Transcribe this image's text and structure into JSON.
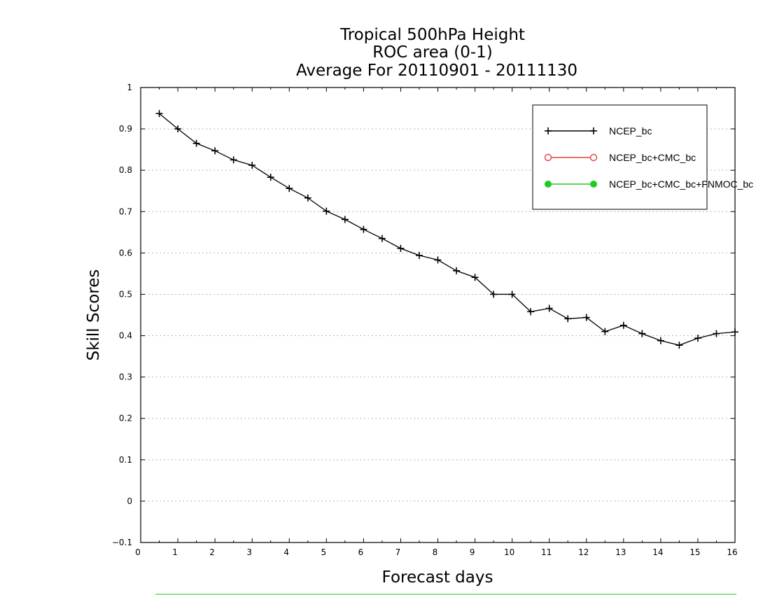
{
  "chart_data": {
    "type": "line",
    "title": [
      "Tropical 500hPa Height",
      "ROC area (0-1)",
      "Average For 20110901 - 20111130"
    ],
    "xlabel": "Forecast days",
    "ylabel": "Skill Scores",
    "xlim": [
      0,
      16
    ],
    "ylim": [
      -0.1,
      1
    ],
    "xticks": [
      "0",
      "1",
      "2",
      "3",
      "4",
      "5",
      "6",
      "7",
      "8",
      "9",
      "10",
      "11",
      "12",
      "13",
      "14",
      "15",
      "16"
    ],
    "yticks": [
      "−0.1",
      "0",
      "0.1",
      "0.2",
      "0.3",
      "0.4",
      "0.5",
      "0.6",
      "0.7",
      "0.8",
      "0.9",
      "1"
    ],
    "grid": "horizontal dotted",
    "legend_position": "top-right",
    "series": [
      {
        "name": "NCEP_bc",
        "color": "#000000",
        "marker": "plus",
        "x": [
          0.5,
          1,
          1.5,
          2,
          2.5,
          3,
          3.5,
          4,
          4.5,
          5,
          5.5,
          6,
          6.5,
          7,
          7.5,
          8,
          8.5,
          9,
          9.5,
          10,
          10.5,
          11,
          11.5,
          12,
          12.5,
          13,
          13.5,
          14,
          14.5,
          15,
          15.5,
          16
        ],
        "y": [
          0.937,
          0.9,
          0.865,
          0.847,
          0.825,
          0.812,
          0.783,
          0.756,
          0.733,
          0.701,
          0.681,
          0.657,
          0.635,
          0.611,
          0.594,
          0.583,
          0.557,
          0.541,
          0.5,
          0.5,
          0.458,
          0.466,
          0.441,
          0.444,
          0.41,
          0.425,
          0.405,
          0.388,
          0.377,
          0.394,
          0.405,
          0.409
        ]
      },
      {
        "name": "NCEP_bc+CMC_bc",
        "color": "#e8413c",
        "marker": "open-circle",
        "x": [],
        "y": []
      },
      {
        "name": "NCEP_bc+CMC_bc+FNMOC_bc",
        "color": "#1fcc1f",
        "marker": "filled-circle",
        "x": [],
        "y": []
      }
    ]
  }
}
